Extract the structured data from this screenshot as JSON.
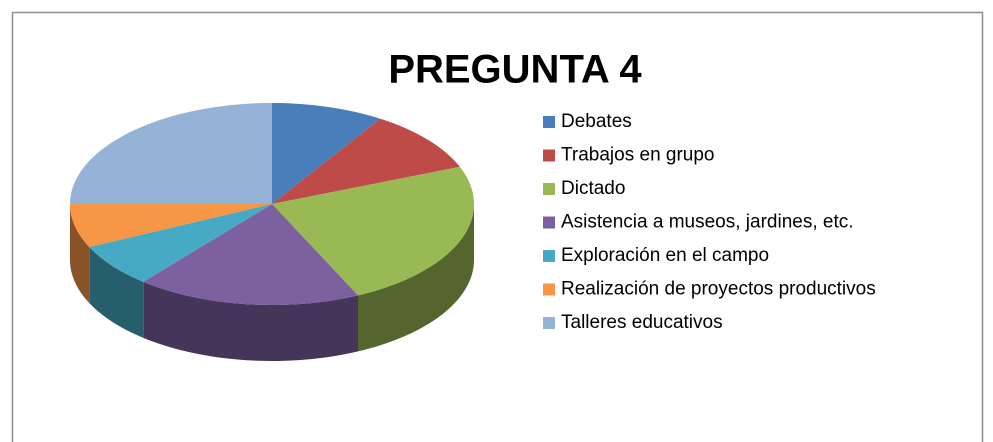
{
  "chart_data": {
    "type": "pie",
    "title": "PREGUNTA 4",
    "categories": [
      "Debates",
      "Trabajos en grupo",
      "Dictado",
      "Asistencia a museos, jardines, etc.",
      "Exploración en el campo",
      "Realización de proyectos productivos",
      "Talleres educativos"
    ],
    "values": [
      9,
      10,
      24,
      18,
      7,
      7,
      25
    ],
    "colors": [
      "#4a7ebb",
      "#be4b48",
      "#98b954",
      "#7d60a0",
      "#46aac5",
      "#f79646",
      "#95b3d7"
    ],
    "legend": "right"
  }
}
